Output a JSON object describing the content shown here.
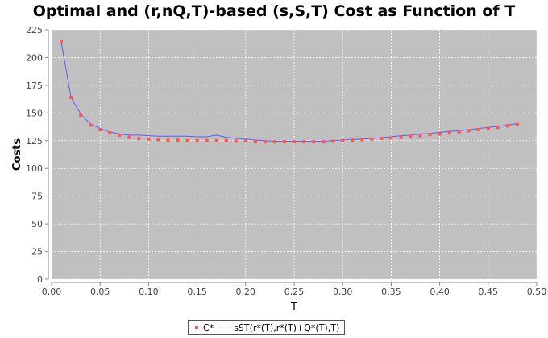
{
  "chart_data": {
    "type": "line",
    "title": "Optimal and (r,nQ,T)-based (s,S,T) Cost as Function of T",
    "xlabel": "T",
    "ylabel": "Costs",
    "xlim": [
      0,
      0.5
    ],
    "ylim": [
      0,
      225
    ],
    "x_ticks": [
      "0,00",
      "0,05",
      "0,10",
      "0,15",
      "0,20",
      "0,25",
      "0,30",
      "0,35",
      "0,40",
      "0,45",
      "0,50"
    ],
    "y_ticks": [
      "0",
      "25",
      "50",
      "75",
      "100",
      "125",
      "150",
      "175",
      "200",
      "225"
    ],
    "grid": true,
    "legend_position": "bottom",
    "x": [
      0.01,
      0.02,
      0.03,
      0.04,
      0.05,
      0.06,
      0.07,
      0.08,
      0.09,
      0.1,
      0.11,
      0.12,
      0.13,
      0.14,
      0.15,
      0.16,
      0.17,
      0.18,
      0.19,
      0.2,
      0.21,
      0.22,
      0.23,
      0.24,
      0.25,
      0.26,
      0.27,
      0.28,
      0.29,
      0.3,
      0.31,
      0.32,
      0.33,
      0.34,
      0.35,
      0.36,
      0.37,
      0.38,
      0.39,
      0.4,
      0.41,
      0.42,
      0.43,
      0.44,
      0.45,
      0.46,
      0.47,
      0.48
    ],
    "series": [
      {
        "name": "C*",
        "style": "points",
        "color": "#ff5555",
        "values": [
          214,
          164,
          148,
          139,
          135,
          132,
          130,
          128,
          127,
          126.5,
          126,
          125.5,
          125.5,
          125,
          125,
          125,
          125,
          125,
          124.5,
          124.5,
          124,
          124,
          124,
          124,
          124,
          124,
          124,
          124,
          124.5,
          125,
          125.5,
          126,
          126.5,
          127,
          127.5,
          128,
          129,
          129.5,
          130.5,
          131,
          132,
          133,
          134,
          135,
          136,
          137,
          138.5,
          139.5
        ]
      },
      {
        "name": "sST(r*(T),r*(T)+Q*(T),T)",
        "style": "line",
        "color": "#5a5aff",
        "values": [
          214,
          164,
          149,
          140,
          136,
          133,
          131,
          130,
          130,
          129.5,
          129,
          129,
          129,
          129,
          128.5,
          128.5,
          130,
          128,
          127,
          126.5,
          125.5,
          125,
          124.5,
          124.5,
          124.5,
          124.5,
          124.5,
          124.5,
          125,
          125.5,
          126,
          126.5,
          127,
          127.5,
          128.5,
          129.5,
          130,
          131,
          131.5,
          132.5,
          133.5,
          134,
          135,
          136,
          137,
          138,
          139,
          140.5
        ]
      }
    ]
  }
}
